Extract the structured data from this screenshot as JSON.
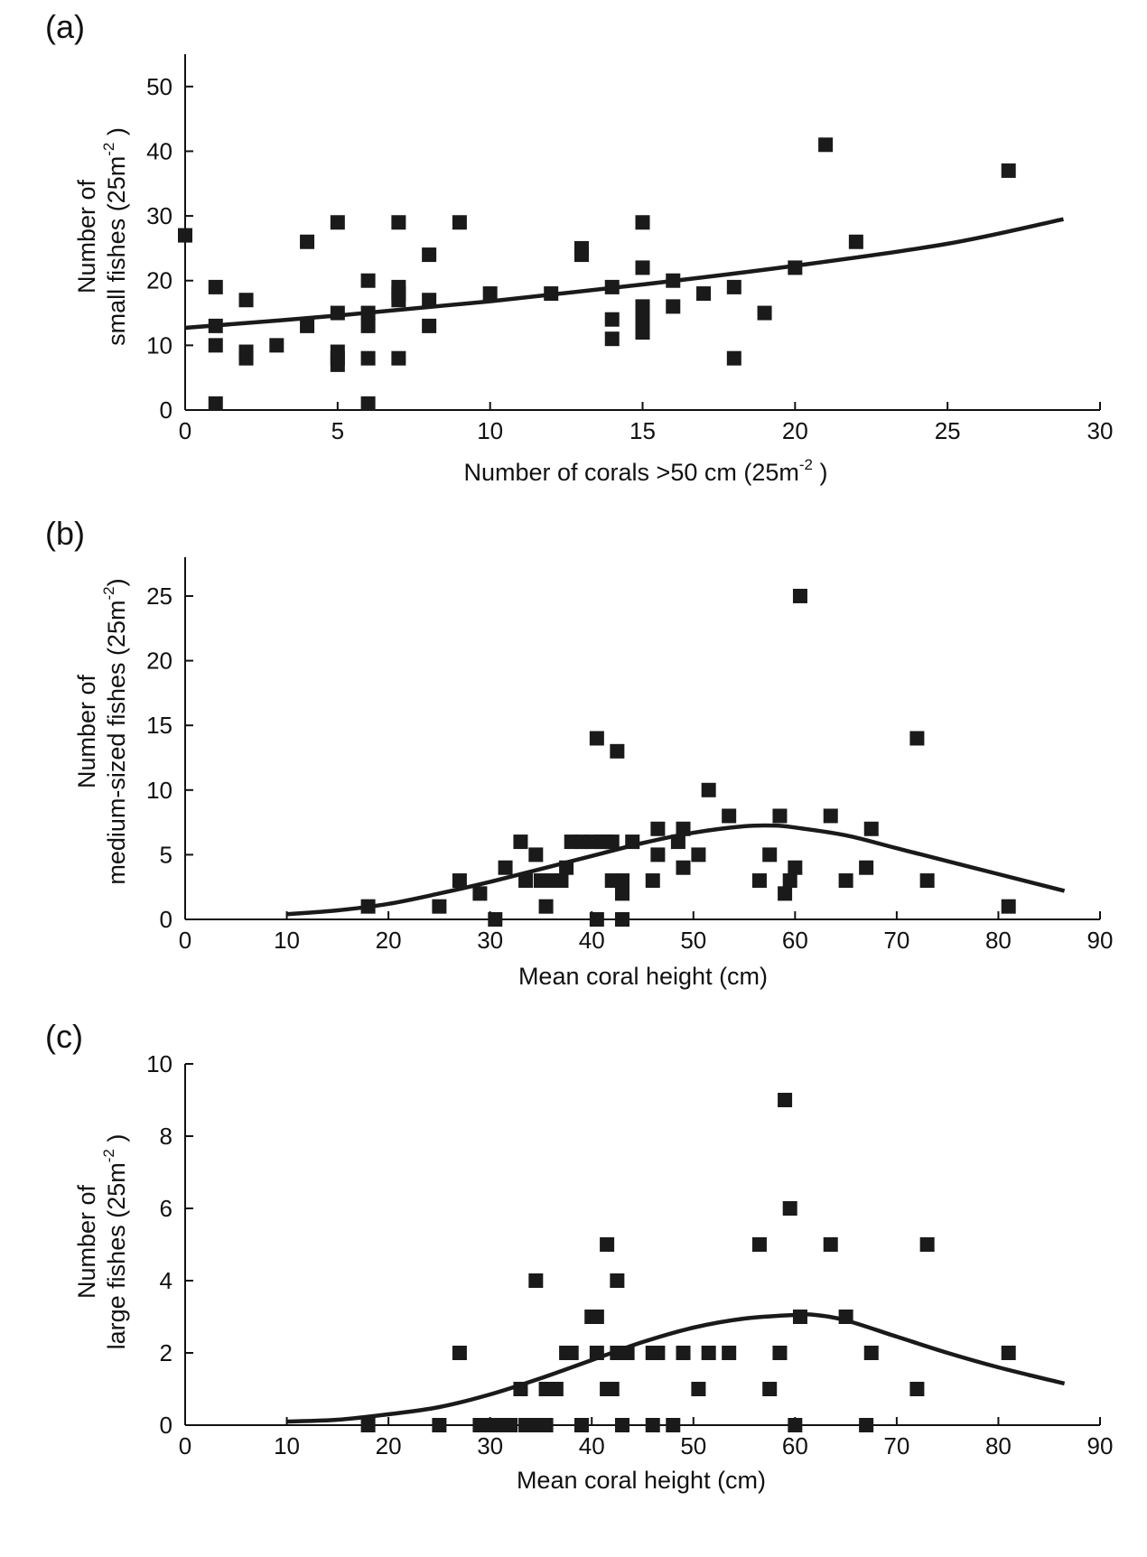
{
  "chart_data": [
    {
      "panel": "(a)",
      "type": "scatter",
      "title": "",
      "xlabel": "Number of corals >50 cm (25m",
      "xlabel_sup": "-2",
      "xlabel_tail": " )",
      "ylabel_line1": "Number of",
      "ylabel_line2": "small fishes (25m",
      "ylabel_sup": "-2",
      "ylabel_tail": " )",
      "xlim": [
        0,
        30
      ],
      "ylim": [
        0,
        55
      ],
      "xticks": [
        0,
        5,
        10,
        15,
        20,
        25,
        30
      ],
      "yticks": [
        0,
        10,
        20,
        30,
        40,
        50
      ],
      "grid": false,
      "points": [
        [
          0,
          27
        ],
        [
          1,
          19
        ],
        [
          1,
          13
        ],
        [
          1,
          10
        ],
        [
          1,
          1
        ],
        [
          2,
          17
        ],
        [
          2,
          9
        ],
        [
          2,
          8
        ],
        [
          3,
          10
        ],
        [
          4,
          26
        ],
        [
          4,
          13
        ],
        [
          5,
          29
        ],
        [
          5,
          15
        ],
        [
          5,
          9
        ],
        [
          5,
          8
        ],
        [
          5,
          7
        ],
        [
          6,
          20
        ],
        [
          6,
          15
        ],
        [
          6,
          13
        ],
        [
          6,
          8
        ],
        [
          6,
          1
        ],
        [
          7,
          29
        ],
        [
          7,
          19
        ],
        [
          7,
          18
        ],
        [
          7,
          17
        ],
        [
          7,
          8
        ],
        [
          8,
          24
        ],
        [
          8,
          17
        ],
        [
          8,
          13
        ],
        [
          9,
          29
        ],
        [
          10,
          18
        ],
        [
          12,
          18
        ],
        [
          13,
          25
        ],
        [
          13,
          24
        ],
        [
          14,
          19
        ],
        [
          14,
          14
        ],
        [
          14,
          11
        ],
        [
          15,
          29
        ],
        [
          15,
          22
        ],
        [
          15,
          16
        ],
        [
          15,
          15
        ],
        [
          15,
          14
        ],
        [
          15,
          13
        ],
        [
          15,
          12
        ],
        [
          16,
          20
        ],
        [
          16,
          16
        ],
        [
          17,
          18
        ],
        [
          18,
          19
        ],
        [
          18,
          8
        ],
        [
          19,
          15
        ],
        [
          20,
          22
        ],
        [
          21,
          41
        ],
        [
          22,
          26
        ],
        [
          27,
          37
        ]
      ],
      "fit_curve": [
        [
          0,
          12.7
        ],
        [
          5,
          14.6
        ],
        [
          10,
          16.8
        ],
        [
          15,
          19.4
        ],
        [
          20,
          22.3
        ],
        [
          25,
          25.7
        ],
        [
          28.8,
          29.5
        ]
      ]
    },
    {
      "panel": "(b)",
      "type": "scatter",
      "title": "",
      "xlabel": "Mean coral height (cm)",
      "ylabel_line1": "Number of",
      "ylabel_line2": "medium-sized fishes (25m",
      "ylabel_sup": "-2",
      "ylabel_tail": ")",
      "xlim": [
        0,
        90
      ],
      "ylim": [
        0,
        28
      ],
      "xticks": [
        0,
        10,
        20,
        30,
        40,
        50,
        60,
        70,
        80,
        90
      ],
      "yticks": [
        0,
        5,
        10,
        15,
        20,
        25
      ],
      "grid": false,
      "points": [
        [
          18,
          1
        ],
        [
          25,
          1
        ],
        [
          27,
          3
        ],
        [
          29,
          2
        ],
        [
          30.5,
          0
        ],
        [
          31.5,
          4
        ],
        [
          33,
          6
        ],
        [
          33.5,
          3
        ],
        [
          34.5,
          5
        ],
        [
          35,
          3
        ],
        [
          35.5,
          1
        ],
        [
          36,
          3
        ],
        [
          37,
          3
        ],
        [
          37.5,
          4
        ],
        [
          38,
          6
        ],
        [
          39,
          6
        ],
        [
          40,
          6
        ],
        [
          40.5,
          14
        ],
        [
          40.5,
          0
        ],
        [
          41,
          6
        ],
        [
          41.5,
          6
        ],
        [
          42,
          3
        ],
        [
          42,
          6
        ],
        [
          42.5,
          13
        ],
        [
          43,
          3
        ],
        [
          43,
          2
        ],
        [
          43,
          0
        ],
        [
          44,
          6
        ],
        [
          46,
          3
        ],
        [
          46.5,
          7
        ],
        [
          46.5,
          5
        ],
        [
          48.5,
          6
        ],
        [
          49,
          7
        ],
        [
          49,
          4
        ],
        [
          50.5,
          5
        ],
        [
          51.5,
          10
        ],
        [
          53.5,
          8
        ],
        [
          56.5,
          3
        ],
        [
          57.5,
          5
        ],
        [
          58.5,
          8
        ],
        [
          59,
          2
        ],
        [
          59.5,
          3
        ],
        [
          60,
          4
        ],
        [
          60.5,
          25
        ],
        [
          63.5,
          8
        ],
        [
          65,
          3
        ],
        [
          67,
          4
        ],
        [
          67.5,
          7
        ],
        [
          72,
          14
        ],
        [
          73,
          3
        ],
        [
          81,
          1
        ]
      ],
      "fit_curve": [
        [
          10,
          0.4
        ],
        [
          15,
          0.7
        ],
        [
          20,
          1.2
        ],
        [
          25,
          2.0
        ],
        [
          30,
          2.9
        ],
        [
          35,
          3.9
        ],
        [
          40,
          4.9
        ],
        [
          45,
          5.9
        ],
        [
          50,
          6.7
        ],
        [
          55,
          7.2
        ],
        [
          58,
          7.25
        ],
        [
          60,
          7.1
        ],
        [
          65,
          6.5
        ],
        [
          70,
          5.5
        ],
        [
          75,
          4.5
        ],
        [
          80,
          3.5
        ],
        [
          86.5,
          2.2
        ]
      ]
    },
    {
      "panel": "(c)",
      "type": "scatter",
      "title": "",
      "xlabel": "Mean coral height (cm)",
      "ylabel_line1": "Number of",
      "ylabel_line2": "large fishes (25m",
      "ylabel_sup": "-2",
      "ylabel_tail": " )",
      "xlim": [
        0,
        90
      ],
      "ylim": [
        0,
        10
      ],
      "xticks": [
        0,
        10,
        20,
        30,
        40,
        50,
        60,
        70,
        80,
        90
      ],
      "yticks": [
        0,
        2,
        4,
        6,
        8,
        10
      ],
      "grid": false,
      "points": [
        [
          18,
          0
        ],
        [
          25,
          0
        ],
        [
          27,
          2
        ],
        [
          29,
          0
        ],
        [
          30,
          0
        ],
        [
          31,
          0
        ],
        [
          32,
          0
        ],
        [
          33,
          1
        ],
        [
          33.5,
          0
        ],
        [
          34.5,
          4
        ],
        [
          34.5,
          0
        ],
        [
          35.5,
          0
        ],
        [
          35.5,
          1
        ],
        [
          36.5,
          1
        ],
        [
          37.5,
          2
        ],
        [
          38,
          2
        ],
        [
          39,
          0
        ],
        [
          40,
          3
        ],
        [
          40.5,
          3
        ],
        [
          40.5,
          2
        ],
        [
          41.5,
          1
        ],
        [
          41.5,
          5
        ],
        [
          42,
          1
        ],
        [
          42.5,
          4
        ],
        [
          42.5,
          2
        ],
        [
          43,
          0
        ],
        [
          43.5,
          2
        ],
        [
          46,
          2
        ],
        [
          46,
          0
        ],
        [
          46.5,
          2
        ],
        [
          48,
          0
        ],
        [
          49,
          2
        ],
        [
          50.5,
          1
        ],
        [
          51.5,
          2
        ],
        [
          53.5,
          2
        ],
        [
          56.5,
          5
        ],
        [
          57.5,
          1
        ],
        [
          58.5,
          2
        ],
        [
          59,
          9
        ],
        [
          59.5,
          6
        ],
        [
          60,
          0
        ],
        [
          60.5,
          3
        ],
        [
          63.5,
          5
        ],
        [
          65,
          3
        ],
        [
          67,
          0
        ],
        [
          67.5,
          2
        ],
        [
          72,
          1
        ],
        [
          73,
          5
        ],
        [
          81,
          2
        ]
      ],
      "fit_curve": [
        [
          10,
          0.1
        ],
        [
          15,
          0.15
        ],
        [
          20,
          0.3
        ],
        [
          25,
          0.5
        ],
        [
          30,
          0.85
        ],
        [
          35,
          1.3
        ],
        [
          40,
          1.8
        ],
        [
          45,
          2.3
        ],
        [
          50,
          2.7
        ],
        [
          55,
          2.95
        ],
        [
          60,
          3.05
        ],
        [
          62,
          3.05
        ],
        [
          65,
          2.9
        ],
        [
          70,
          2.45
        ],
        [
          75,
          2.0
        ],
        [
          80,
          1.6
        ],
        [
          86.5,
          1.15
        ]
      ]
    }
  ]
}
